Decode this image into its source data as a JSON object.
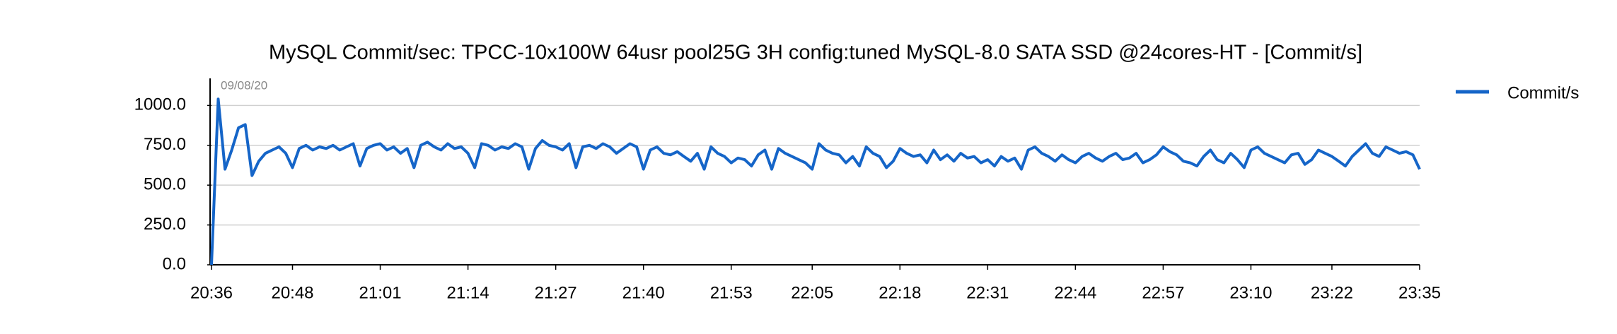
{
  "chart_data": {
    "type": "line",
    "title": "MySQL Commit/sec: TPCC-10x100W 64usr pool25G 3H config:tuned MySQL-8.0 SATA SSD @24cores-HT - [Commit/s]",
    "annotation": "09/08/20",
    "categories": [
      "20:36",
      null,
      null,
      null,
      null,
      null,
      null,
      null,
      null,
      null,
      null,
      null,
      "20:48",
      null,
      null,
      null,
      null,
      null,
      null,
      null,
      null,
      null,
      null,
      null,
      null,
      "21:01",
      null,
      null,
      null,
      null,
      null,
      null,
      null,
      null,
      null,
      null,
      null,
      null,
      "21:14",
      null,
      null,
      null,
      null,
      null,
      null,
      null,
      null,
      null,
      null,
      null,
      null,
      "21:27",
      null,
      null,
      null,
      null,
      null,
      null,
      null,
      null,
      null,
      null,
      null,
      null,
      "21:40",
      null,
      null,
      null,
      null,
      null,
      null,
      null,
      null,
      null,
      null,
      null,
      null,
      "21:53",
      null,
      null,
      null,
      null,
      null,
      null,
      null,
      null,
      null,
      null,
      null,
      "22:05",
      null,
      null,
      null,
      null,
      null,
      null,
      null,
      null,
      null,
      null,
      null,
      null,
      "22:18",
      null,
      null,
      null,
      null,
      null,
      null,
      null,
      null,
      null,
      null,
      null,
      null,
      "22:31",
      null,
      null,
      null,
      null,
      null,
      null,
      null,
      null,
      null,
      null,
      null,
      null,
      "22:44",
      null,
      null,
      null,
      null,
      null,
      null,
      null,
      null,
      null,
      null,
      null,
      null,
      "22:57",
      null,
      null,
      null,
      null,
      null,
      null,
      null,
      null,
      null,
      null,
      null,
      null,
      "23:10",
      null,
      null,
      null,
      null,
      null,
      null,
      null,
      null,
      null,
      null,
      null,
      "23:22",
      null,
      null,
      null,
      null,
      null,
      null,
      null,
      null,
      null,
      null,
      null,
      null,
      "23:35"
    ],
    "series": [
      {
        "name": "Commit/s",
        "color": "#1565c8",
        "values": [
          0,
          1040,
          600,
          720,
          860,
          880,
          560,
          650,
          700,
          720,
          740,
          700,
          610,
          730,
          750,
          720,
          740,
          730,
          750,
          720,
          740,
          760,
          620,
          730,
          750,
          760,
          720,
          740,
          700,
          730,
          610,
          750,
          770,
          740,
          720,
          760,
          730,
          740,
          700,
          610,
          760,
          750,
          720,
          740,
          730,
          760,
          740,
          600,
          730,
          780,
          750,
          740,
          720,
          760,
          610,
          740,
          750,
          730,
          760,
          740,
          700,
          730,
          760,
          740,
          600,
          720,
          740,
          700,
          690,
          710,
          680,
          650,
          700,
          600,
          740,
          700,
          680,
          640,
          670,
          660,
          620,
          690,
          720,
          600,
          730,
          700,
          680,
          660,
          640,
          600,
          760,
          720,
          700,
          690,
          640,
          680,
          620,
          740,
          700,
          680,
          610,
          650,
          730,
          700,
          680,
          690,
          640,
          720,
          660,
          690,
          650,
          700,
          670,
          680,
          640,
          660,
          620,
          680,
          650,
          670,
          600,
          720,
          740,
          700,
          680,
          650,
          690,
          660,
          640,
          680,
          700,
          670,
          650,
          680,
          700,
          660,
          670,
          700,
          640,
          660,
          690,
          740,
          710,
          690,
          650,
          640,
          620,
          680,
          720,
          660,
          640,
          700,
          660,
          610,
          720,
          740,
          700,
          680,
          660,
          640,
          690,
          700,
          630,
          660,
          720,
          700,
          680,
          650,
          620,
          680,
          720,
          760,
          700,
          680,
          740,
          720,
          700,
          710,
          690,
          600
        ]
      }
    ],
    "ylim": [
      0,
      1170
    ],
    "yticks": [
      {
        "value": 0,
        "label": "0.0"
      },
      {
        "value": 250,
        "label": "250.0"
      },
      {
        "value": 500,
        "label": "500.0"
      },
      {
        "value": 750,
        "label": "750.0"
      },
      {
        "value": 1000,
        "label": "1000.0"
      }
    ],
    "grid": true,
    "legend": "right"
  }
}
